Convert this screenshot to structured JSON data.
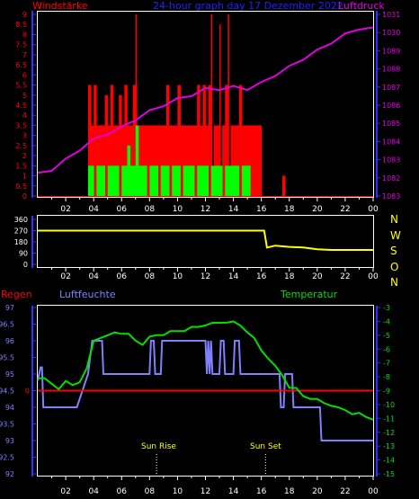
{
  "header": {
    "left_label": "Windstärke",
    "center_label": "24-hour graph day   17 Dezember 2022",
    "right_label": "Luftdruck"
  },
  "wind_panel": {
    "strength_ticks": [
      "9",
      "8.5",
      "8",
      "7.5",
      "7",
      "6.5",
      "6",
      "5.5",
      "5",
      "4.5",
      "4",
      "3.5",
      "3",
      "2.5",
      "2",
      "1.5",
      "1",
      "0.5",
      "0"
    ],
    "pressure_ticks": [
      "1031",
      "1030",
      "1089",
      "1088",
      "1087",
      "1086",
      "1085",
      "1084",
      "1083",
      "1082",
      "1083"
    ]
  },
  "direction_panel": {
    "ticks": [
      "360",
      "270",
      "180",
      "90",
      "0"
    ],
    "compass": [
      "N",
      "W",
      "S",
      "O",
      "N"
    ]
  },
  "bottom_panel": {
    "left_label": "Regen",
    "mid_label": "Luftfeuchte",
    "right_label": "Temperatur",
    "humidity_ticks": [
      "97",
      "96.5",
      "96",
      "95.5",
      "95",
      "94.5",
      "94",
      "93.5",
      "93",
      "92.5",
      "92"
    ],
    "temp_ticks": [
      "-3",
      "-4",
      "-5",
      "-6",
      "-7",
      "-8",
      "-9",
      "-10",
      "-11",
      "-12",
      "-13",
      "-14",
      "-15"
    ],
    "rain_value": "0",
    "sun_rise": "Sun Rise",
    "sun_set": "Sun Set"
  },
  "x_ticks": [
    "02",
    "04",
    "06",
    "08",
    "10",
    "12",
    "14",
    "16",
    "18",
    "20",
    "22",
    "00"
  ],
  "colors": {
    "wind_gust": "#ff0000",
    "wind_avg": "#00ff00",
    "pressure": "#e000e0",
    "direction": "#ffff00",
    "humidity": "#8080ff",
    "temperature": "#00e000",
    "rain": "#ff0000",
    "axis_blue": "#3030ff",
    "tick_red": "#ff0000",
    "tick_magenta": "#e000e0",
    "tick_green": "#00e000"
  },
  "chart_data": [
    {
      "type": "bar",
      "name": "wind",
      "x_range": [
        0,
        24
      ],
      "ylim": [
        0,
        9
      ],
      "series": [
        {
          "name": "gust",
          "x": [
            3.6,
            3.8,
            4,
            4.2,
            4.4,
            4.6,
            4.8,
            5,
            5.2,
            5.4,
            5.6,
            5.8,
            6,
            6.2,
            6.4,
            6.6,
            6.8,
            7,
            7.2,
            7.4,
            7.6,
            7.8,
            8,
            8.2,
            8.4,
            8.6,
            8.8,
            9,
            9.2,
            9.4,
            9.6,
            9.8,
            10,
            10.2,
            10.4,
            10.6,
            10.8,
            11,
            11.2,
            11.4,
            11.6,
            11.8,
            12,
            12.2,
            12.4,
            12.6,
            12.8,
            13,
            13.2,
            13.4,
            13.6,
            13.8,
            14,
            14.2,
            14.4,
            14.6,
            14.8,
            15,
            15.2,
            15.4,
            15.6,
            15.8,
            17.5
          ],
          "values": [
            5.5,
            3.5,
            5.5,
            3.5,
            3.5,
            3.5,
            5,
            3.5,
            5.5,
            3.5,
            3.5,
            5,
            3.5,
            5.5,
            3.5,
            3.5,
            5.5,
            9,
            3.5,
            3.5,
            3.5,
            3.5,
            3.5,
            3.5,
            3.5,
            3.5,
            3.5,
            3.5,
            5.5,
            3.5,
            3.5,
            3.5,
            5.5,
            3.5,
            3.5,
            3.5,
            3.5,
            3.5,
            3.5,
            5.5,
            3.5,
            5.5,
            3.5,
            5.5,
            9,
            3.5,
            3.5,
            8.5,
            3.5,
            5.5,
            9,
            3.5,
            3.5,
            3.5,
            5.5,
            3.5,
            3.5,
            3.5,
            3.5,
            3.5,
            3.5,
            3.5,
            1
          ]
        },
        {
          "name": "average",
          "x": [
            3.6,
            3.8,
            4,
            4.2,
            4.4,
            4.6,
            4.8,
            5,
            5.2,
            5.4,
            5.6,
            5.8,
            6,
            6.2,
            6.4,
            6.6,
            6.8,
            7,
            7.2,
            7.4,
            7.6,
            7.8,
            8,
            8.2,
            8.4,
            8.6,
            8.8,
            9,
            9.2,
            9.4,
            9.6,
            9.8,
            10,
            10.2,
            10.4,
            10.6,
            10.8,
            11,
            11.2,
            11.4,
            11.6,
            11.8,
            12,
            12.2,
            12.4,
            12.6,
            12.8,
            13,
            13.2,
            13.4,
            13.6,
            13.8,
            14,
            14.2,
            14.4,
            14.6,
            14.8,
            15
          ],
          "values": [
            1.5,
            1.5,
            0,
            1.5,
            1.5,
            1.5,
            0,
            1.5,
            1.5,
            1.5,
            1.5,
            0,
            1.5,
            1.5,
            2.5,
            1.5,
            1.5,
            3.5,
            1.5,
            1.5,
            1.5,
            0,
            1.5,
            1.5,
            1.5,
            0,
            1.5,
            1.5,
            1.5,
            0,
            1.5,
            1.5,
            1.5,
            0,
            1.5,
            1.5,
            1.5,
            1.5,
            0,
            1.5,
            1.5,
            1.5,
            1.5,
            0,
            1.5,
            1.5,
            1.5,
            1.5,
            0,
            1.5,
            1.5,
            1.5,
            1.5,
            1.5,
            0,
            1.5,
            1.5,
            1.5
          ]
        }
      ]
    },
    {
      "type": "line",
      "name": "pressure",
      "ylim": [
        1022,
        1031
      ],
      "x": [
        0,
        1,
        2,
        3,
        4,
        5,
        6,
        7,
        8,
        9,
        10,
        11,
        12,
        13,
        14,
        15,
        16,
        17,
        18,
        19,
        20,
        21,
        22,
        23,
        24
      ],
      "values": [
        1023.1,
        1023.3,
        1023.8,
        1024.3,
        1024.8,
        1025.1,
        1025.4,
        1025.8,
        1026.2,
        1026.5,
        1026.8,
        1027.0,
        1027.3,
        1027.3,
        1027.4,
        1027.3,
        1027.6,
        1028.0,
        1028.4,
        1028.8,
        1029.2,
        1029.6,
        1030.0,
        1030.3,
        1030.3
      ]
    },
    {
      "type": "line",
      "name": "direction",
      "ylim": [
        0,
        360
      ],
      "x": [
        0,
        16.2,
        16.4,
        17,
        18,
        19,
        20,
        21,
        22,
        23,
        24
      ],
      "values": [
        270,
        270,
        135,
        150,
        140,
        135,
        120,
        115,
        115,
        115,
        115
      ]
    },
    {
      "type": "line",
      "name": "humidity",
      "ylim": [
        92,
        97
      ],
      "x": [
        0,
        0.2,
        0.3,
        0.4,
        0.5,
        2.8,
        3.6,
        3.9,
        4.0,
        4.6,
        4.7,
        8,
        8.1,
        8.3,
        8.4,
        8.8,
        8.9,
        12,
        12.1,
        12.2,
        12.3,
        12.4,
        12.5,
        13,
        13.1,
        13.3,
        13.4,
        14,
        14.1,
        14.4,
        14.5,
        17.3,
        17.4,
        17.6,
        17.7,
        18.2,
        18.3,
        20.2,
        20.3,
        20.7,
        20.8,
        24
      ],
      "values": [
        94.8,
        95.2,
        95.2,
        94,
        94,
        94,
        95,
        96,
        96,
        96,
        95,
        95,
        96,
        96,
        95,
        95,
        96,
        96,
        95,
        96,
        95,
        96,
        95,
        95,
        96,
        96,
        95,
        95,
        96,
        96,
        95,
        95,
        94,
        94,
        95,
        95,
        94,
        94,
        93,
        93,
        93,
        93
      ]
    },
    {
      "type": "line",
      "name": "temperature",
      "ylim": [
        -15,
        -3
      ],
      "x": [
        0,
        0.5,
        1,
        1.5,
        2,
        2.5,
        3,
        3.5,
        4,
        4.5,
        5,
        5.5,
        6,
        6.5,
        7,
        7.5,
        8,
        8.5,
        9,
        9.5,
        10,
        10.5,
        11,
        11.5,
        12,
        12.5,
        13,
        13.5,
        14,
        14.5,
        15,
        15.5,
        16,
        16.5,
        17,
        17.5,
        18,
        18.5,
        19,
        19.5,
        20,
        20.5,
        21,
        21.5,
        22,
        22.5,
        23,
        23.5,
        24
      ],
      "values": [
        -8,
        -8.2,
        -8.5,
        -8.8,
        -8.4,
        -8.6,
        -8.3,
        -7.5,
        -5.4,
        -5.1,
        -5.1,
        -4.8,
        -4.8,
        -5,
        -5.4,
        -5.6,
        -5.2,
        -5.0,
        -4.9,
        -4.8,
        -4.7,
        -4.6,
        -4.5,
        -4.4,
        -4.2,
        -4.2,
        -4.1,
        -4.0,
        -4.1,
        -4.3,
        -4.7,
        -5.3,
        -6.1,
        -6.6,
        -7.3,
        -7.9,
        -8.7,
        -8.9,
        -9.4,
        -9.5,
        -9.7,
        -9.9,
        -10.0,
        -10.3,
        -10.4,
        -10.6,
        -10.7,
        -10.9,
        -11.0
      ]
    },
    {
      "type": "line",
      "name": "rain",
      "ylim": [
        0,
        1
      ],
      "x": [
        0,
        24
      ],
      "values": [
        0,
        0
      ]
    }
  ]
}
